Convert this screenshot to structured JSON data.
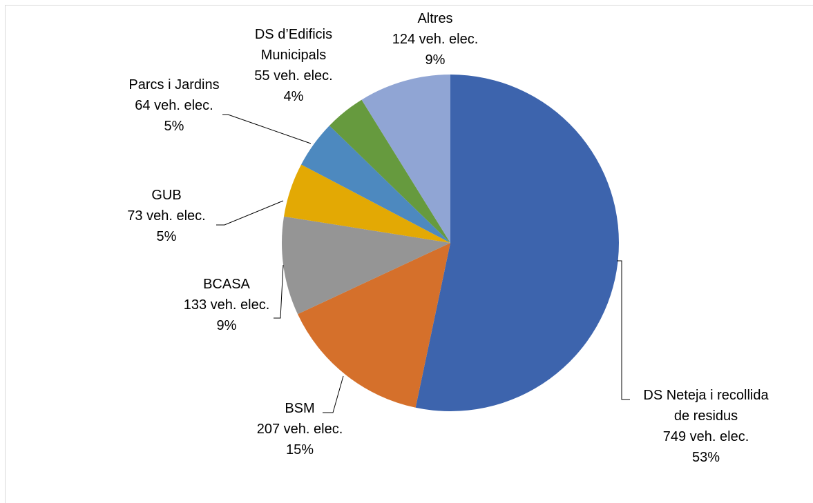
{
  "chart_data": {
    "type": "pie",
    "title": "",
    "start_angle_deg": 0,
    "direction": "clockwise",
    "legend": "none",
    "slices": [
      {
        "label_lines": [
          "DS Neteja i recollida",
          "de residus"
        ],
        "value_text": "749 veh. elec.",
        "percent_text": "53%",
        "value": 749,
        "color": "#3d64ad"
      },
      {
        "label_lines": [
          "BSM"
        ],
        "value_text": "207 veh. elec.",
        "percent_text": "15%",
        "value": 207,
        "color": "#d5702b"
      },
      {
        "label_lines": [
          "BCASA"
        ],
        "value_text": "133 veh. elec.",
        "percent_text": "9%",
        "value": 133,
        "color": "#959595"
      },
      {
        "label_lines": [
          "GUB"
        ],
        "value_text": "73 veh. elec.",
        "percent_text": "5%",
        "value": 73,
        "color": "#e3a904"
      },
      {
        "label_lines": [
          "Parcs i Jardins"
        ],
        "value_text": "64 veh. elec.",
        "percent_text": "5%",
        "value": 64,
        "color": "#4d89bf"
      },
      {
        "label_lines": [
          "DS d’Edificis",
          "Municipals"
        ],
        "value_text": "55 veh. elec.",
        "percent_text": "4%",
        "value": 55,
        "color": "#669a3e"
      },
      {
        "label_lines": [
          "Altres"
        ],
        "value_text": "124 veh. elec.",
        "percent_text": "9%",
        "value": 124,
        "color": "#90a5d4"
      }
    ]
  }
}
